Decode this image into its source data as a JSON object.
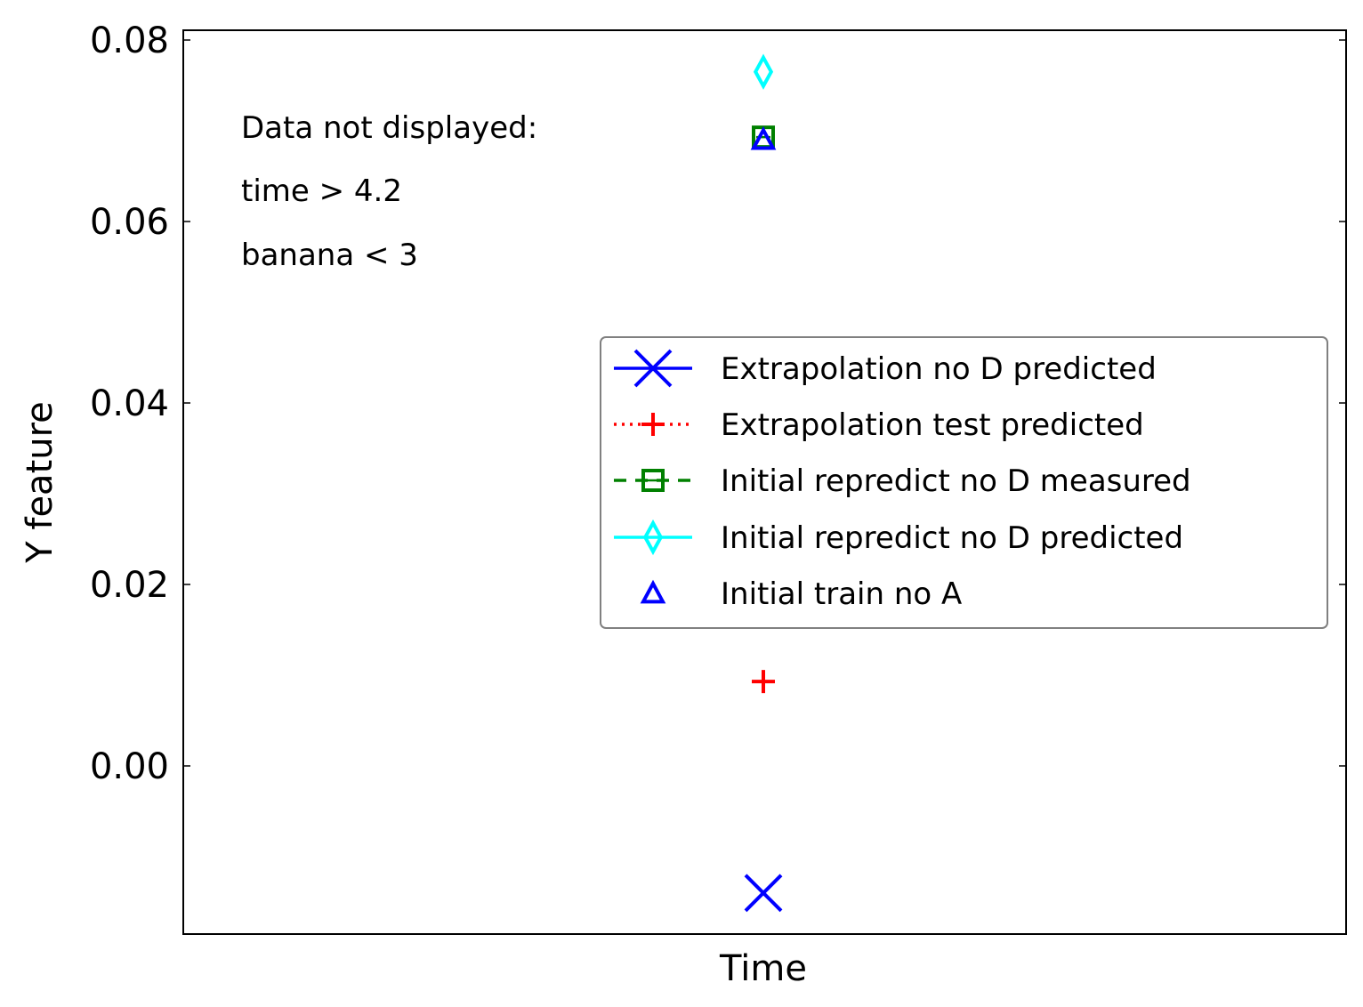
{
  "chart_data": {
    "type": "scatter",
    "xlabel": "Time",
    "ylabel": "Y feature",
    "ylim": [
      -0.019,
      0.081
    ],
    "yticks": [
      "0.00",
      "0.02",
      "0.04",
      "0.06",
      "0.08"
    ],
    "ytick_values": [
      0.0,
      0.02,
      0.04,
      0.06,
      0.08
    ],
    "xticks": [],
    "grid": false,
    "legend_placement": "center-right",
    "annotation": [
      "Data not displayed:",
      "time > 4.2",
      "banana < 3"
    ],
    "series": [
      {
        "name": "Extrapolation no D predicted",
        "color": "#0000ff",
        "marker": "x",
        "linestyle": "solid",
        "points": [
          {
            "x": 0,
            "y": -0.014
          }
        ]
      },
      {
        "name": "Extrapolation test predicted",
        "color": "#ff0000",
        "marker": "+",
        "linestyle": "dotted",
        "points": [
          {
            "x": 0,
            "y": 0.0093
          }
        ]
      },
      {
        "name": "Initial repredict no D measured",
        "color": "#008000",
        "marker": "square",
        "linestyle": "dashed",
        "points": [
          {
            "x": 0,
            "y": 0.0693
          }
        ]
      },
      {
        "name": "Initial repredict no D predicted",
        "color": "#00ffff",
        "marker": "diamond",
        "linestyle": "solid",
        "points": [
          {
            "x": 0,
            "y": 0.0765
          }
        ]
      },
      {
        "name": "Initial train no A",
        "color": "#0000ff",
        "marker": "triangle",
        "linestyle": "none",
        "points": [
          {
            "x": 0,
            "y": 0.069
          }
        ]
      }
    ]
  }
}
